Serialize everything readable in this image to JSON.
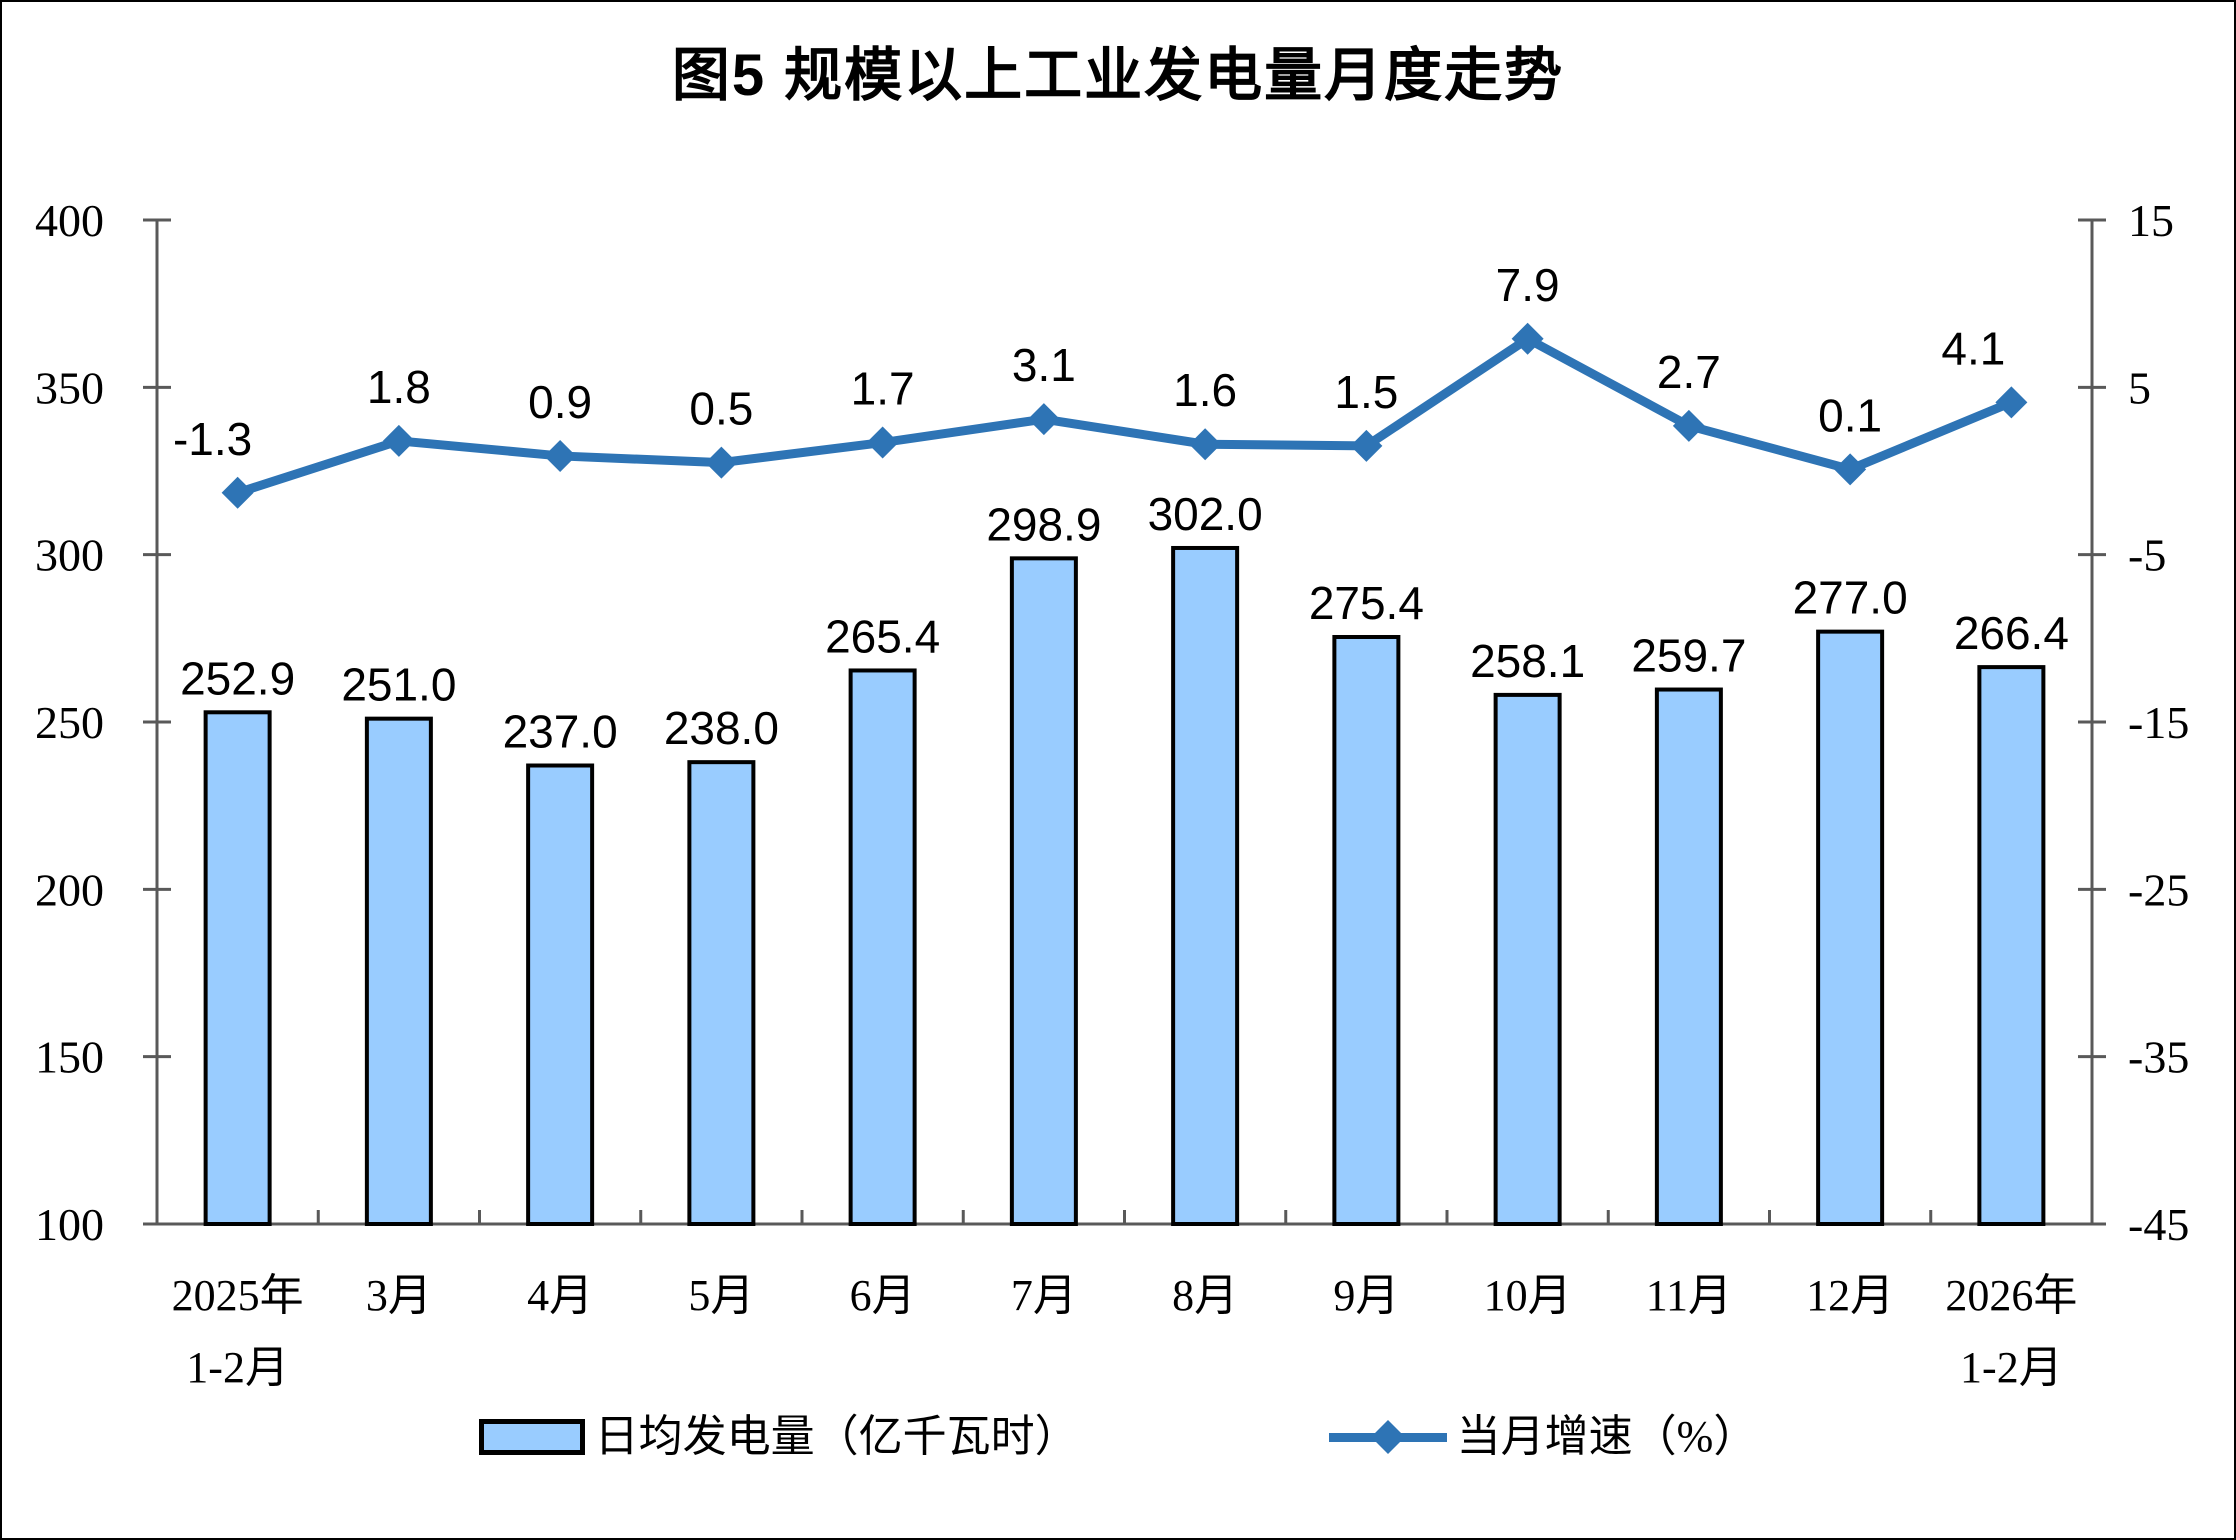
{
  "title": "图5 规模以上工业发电量月度走势",
  "legend": [
    {
      "label": "日均发电量（亿千瓦时）",
      "swatch": "bar"
    },
    {
      "label": "当月增速（%）",
      "swatch": "line"
    }
  ],
  "chart_data": {
    "type": "bar+line",
    "categories": [
      [
        "2025年",
        "1-2月"
      ],
      [
        "3月"
      ],
      [
        "4月"
      ],
      [
        "5月"
      ],
      [
        "6月"
      ],
      [
        "7月"
      ],
      [
        "8月"
      ],
      [
        "9月"
      ],
      [
        "10月"
      ],
      [
        "11月"
      ],
      [
        "12月"
      ],
      [
        "2026年",
        "1-2月"
      ]
    ],
    "series": [
      {
        "name": "日均发电量（亿千瓦时）",
        "type": "bar",
        "axis": "left",
        "values": [
          252.9,
          251.0,
          237.0,
          238.0,
          265.4,
          298.9,
          302.0,
          275.4,
          258.1,
          259.7,
          277.0,
          266.4
        ],
        "labels": [
          "252.9",
          "251.0",
          "237.0",
          "238.0",
          "265.4",
          "298.9",
          "302.0",
          "275.4",
          "258.1",
          "259.7",
          "277.0",
          "266.4"
        ]
      },
      {
        "name": "当月增速（%）",
        "type": "line",
        "axis": "right",
        "values": [
          -1.3,
          1.8,
          0.9,
          0.5,
          1.7,
          3.1,
          1.6,
          1.5,
          7.9,
          2.7,
          0.1,
          4.1
        ],
        "labels": [
          "-1.3",
          "1.8",
          "0.9",
          "0.5",
          "1.7",
          "3.1",
          "1.6",
          "1.5",
          "7.9",
          "2.7",
          "0.1",
          "4.1"
        ]
      }
    ],
    "left_axis": {
      "min": 100,
      "max": 400,
      "step": 50,
      "ticks": [
        "400",
        "350",
        "300",
        "250",
        "200",
        "150",
        "100"
      ]
    },
    "right_axis": {
      "min": -45,
      "max": 15,
      "step": 10,
      "ticks": [
        "15",
        "5",
        "-5",
        "-15",
        "-25",
        "-35",
        "-45"
      ]
    },
    "grid": "off",
    "legend_position": "bottom",
    "colors": {
      "bar_fill": "#99CCFF",
      "bar_stroke": "#000000",
      "line": "#2E74B5",
      "axis": "#595959",
      "text": "#000000",
      "background": "#FFFFFF"
    }
  }
}
